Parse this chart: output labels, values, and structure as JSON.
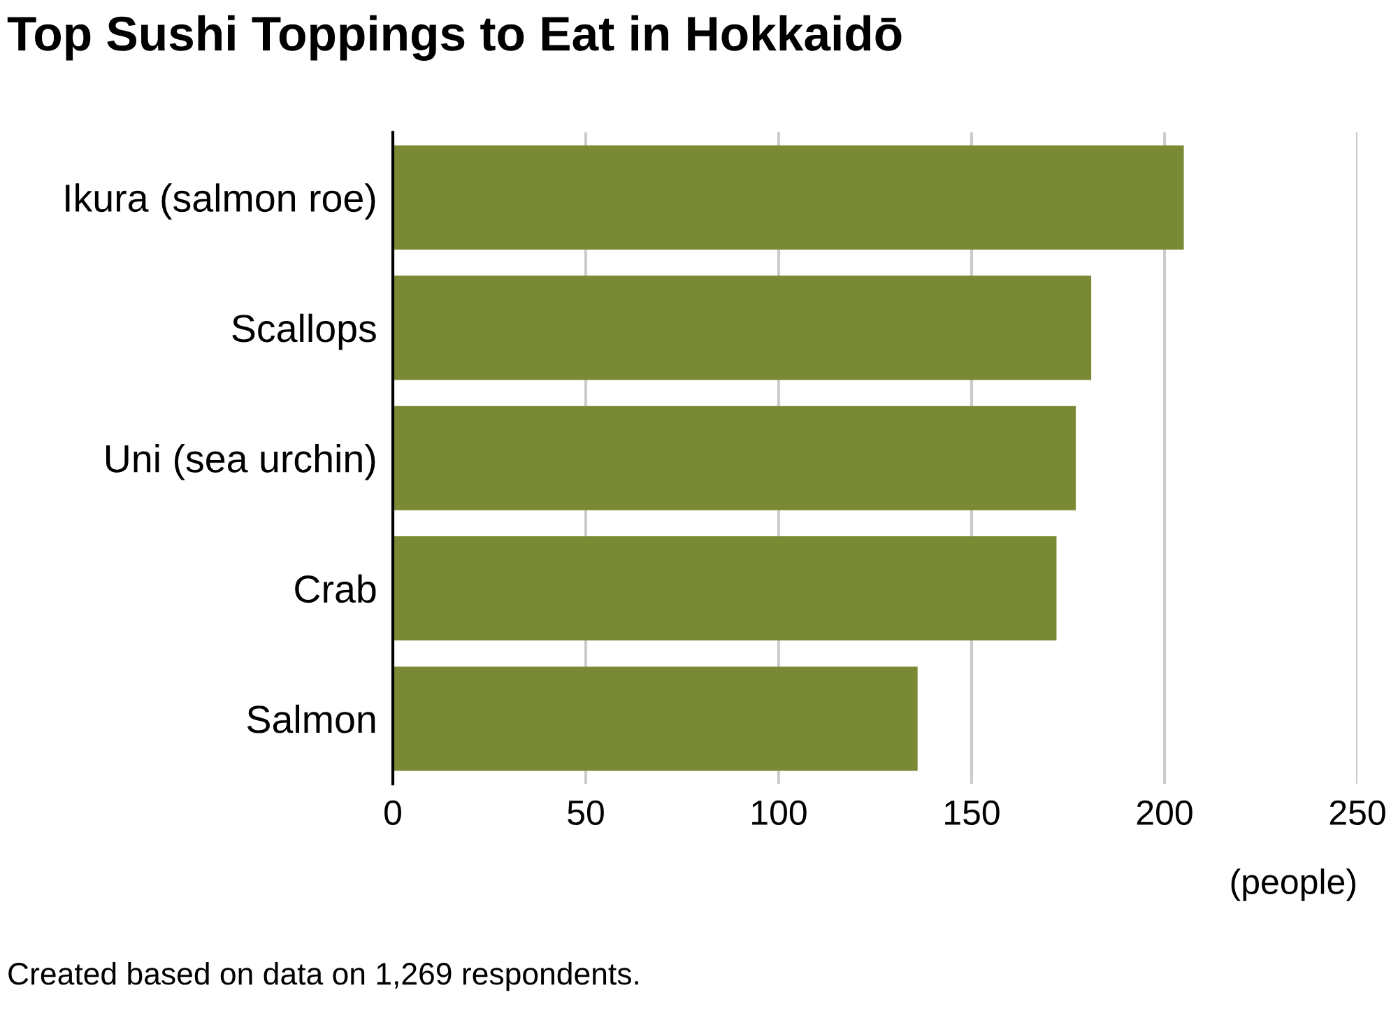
{
  "chart_data": {
    "type": "bar",
    "orientation": "horizontal",
    "title": "Top Sushi Toppings to Eat in Hokkaidō",
    "categories": [
      "Ikura (salmon roe)",
      "Scallops",
      "Uni (sea urchin)",
      "Crab",
      "Salmon"
    ],
    "values": [
      205,
      181,
      177,
      172,
      136
    ],
    "color": "#7a8a34",
    "xlim": [
      0,
      250
    ],
    "xticks": [
      0,
      50,
      100,
      150,
      200,
      250
    ],
    "xlabel": "(people)",
    "grid": "x",
    "annotations": [
      "Created based on data on 1,269 respondents."
    ]
  }
}
